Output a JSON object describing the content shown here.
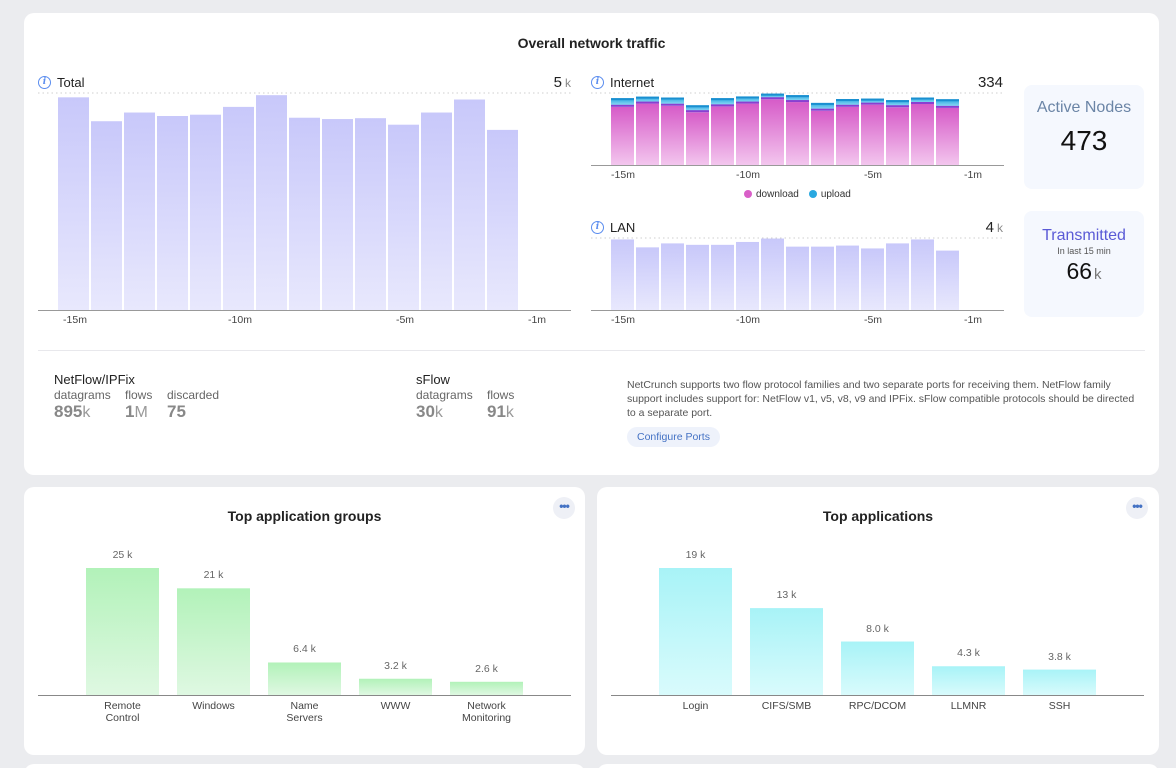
{
  "main": {
    "title": "Overall network traffic",
    "total": {
      "label": "Total",
      "max_value": "5",
      "max_unit": "k",
      "ticks": [
        "-15m",
        "-10m",
        "-5m",
        "-1m"
      ]
    },
    "internet": {
      "label": "Internet",
      "max_value": "334",
      "ticks": [
        "-15m",
        "-10m",
        "-5m",
        "-1m"
      ],
      "legend": {
        "download": "download",
        "upload": "upload"
      }
    },
    "lan": {
      "label": "LAN",
      "max_value": "4",
      "max_unit": "k",
      "ticks": [
        "-15m",
        "-10m",
        "-5m",
        "-1m"
      ]
    },
    "active_nodes": {
      "title": "Active Nodes",
      "value": "473"
    },
    "transmitted": {
      "title": "Transmitted",
      "subtitle": "In last 15 min",
      "value": "66",
      "unit": "k"
    },
    "netflow": {
      "title": "NetFlow/IPFix",
      "datagrams_label": "datagrams",
      "datagrams_value": "895",
      "datagrams_unit": "k",
      "flows_label": "flows",
      "flows_value": "1",
      "flows_unit": "M",
      "discarded_label": "discarded",
      "discarded_value": "75"
    },
    "sflow": {
      "title": "sFlow",
      "datagrams_label": "datagrams",
      "datagrams_value": "30",
      "datagrams_unit": "k",
      "flows_label": "flows",
      "flows_value": "91",
      "flows_unit": "k"
    },
    "description": "NetCrunch supports two flow protocol families and two separate ports for receiving them. NetFlow family support includes support for: NetFlow v1, v5, v8, v9 and IPFix. sFlow compatible protocols should be directed to a separate port.",
    "configure_ports_label": "Configure Ports"
  },
  "groups": {
    "title": "Top application groups",
    "more_label": "•••"
  },
  "apps": {
    "title": "Top applications",
    "more_label": "•••"
  },
  "colors": {
    "total_bar_top": "#c8c8fa",
    "total_bar_bottom": "#e8e8fd",
    "download": "#d95fc8",
    "upload": "#29a8e0",
    "green_top": "#b2f2b9",
    "green_bottom": "#dff8e2",
    "cyan_top": "#a8f3f7",
    "cyan_bottom": "#d9fbfc"
  },
  "chart_data": [
    {
      "type": "bar",
      "title": "Total",
      "unit": "k",
      "x": [
        "-15m",
        "-14m",
        "-13m",
        "-12m",
        "-11m",
        "-10m",
        "-9m",
        "-8m",
        "-7m",
        "-6m",
        "-5m",
        "-4m",
        "-3m",
        "-2m"
      ],
      "values": [
        4.9,
        4.35,
        4.55,
        4.47,
        4.5,
        4.68,
        4.95,
        4.43,
        4.4,
        4.42,
        4.27,
        4.55,
        4.85,
        4.15
      ],
      "ylim": [
        0,
        5
      ]
    },
    {
      "type": "bar",
      "title": "Internet",
      "stacked": true,
      "x": [
        "-15m",
        "-14m",
        "-13m",
        "-12m",
        "-11m",
        "-10m",
        "-9m",
        "-8m",
        "-7m",
        "-6m",
        "-5m",
        "-4m",
        "-3m",
        "-2m"
      ],
      "series": [
        {
          "name": "download",
          "values": [
            270,
            285,
            275,
            245,
            272,
            285,
            305,
            292,
            252,
            270,
            280,
            268,
            283,
            265
          ]
        },
        {
          "name": "upload",
          "values": [
            40,
            32,
            38,
            32,
            38,
            33,
            26,
            32,
            36,
            36,
            28,
            33,
            30,
            40
          ]
        }
      ],
      "ylim": [
        0,
        334
      ]
    },
    {
      "type": "bar",
      "title": "LAN",
      "unit": "k",
      "x": [
        "-15m",
        "-14m",
        "-13m",
        "-12m",
        "-11m",
        "-10m",
        "-9m",
        "-8m",
        "-7m",
        "-6m",
        "-5m",
        "-4m",
        "-3m",
        "-2m"
      ],
      "values": [
        3.92,
        3.48,
        3.7,
        3.62,
        3.62,
        3.78,
        3.97,
        3.52,
        3.52,
        3.58,
        3.42,
        3.7,
        3.92,
        3.3
      ],
      "ylim": [
        0,
        4
      ]
    },
    {
      "type": "bar",
      "title": "Top application groups",
      "categories": [
        "Remote\nControl",
        "Windows",
        "Name\nServers",
        "WWW",
        "Network\nMonitoring"
      ],
      "values": [
        25000,
        21000,
        6400,
        3200,
        2600
      ],
      "labels": [
        "25 k",
        "21 k",
        "6.4 k",
        "3.2 k",
        "2.6 k"
      ],
      "ylim": [
        0,
        25000
      ]
    },
    {
      "type": "bar",
      "title": "Top applications",
      "categories": [
        "Login",
        "CIFS/SMB",
        "RPC/DCOM",
        "LLMNR",
        "SSH"
      ],
      "values": [
        19000,
        13000,
        8000,
        4300,
        3800
      ],
      "labels": [
        "19 k",
        "13 k",
        "8.0 k",
        "4.3 k",
        "3.8 k"
      ],
      "ylim": [
        0,
        19000
      ]
    }
  ]
}
